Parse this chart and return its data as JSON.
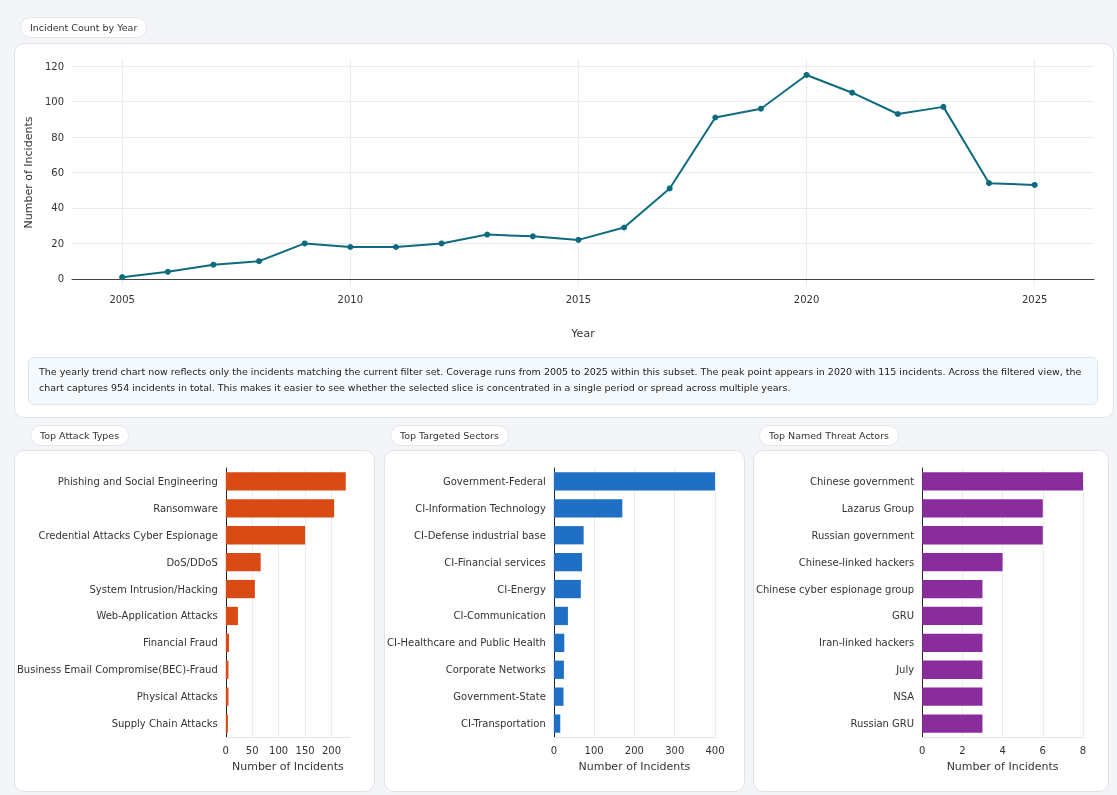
{
  "chart_data": [
    {
      "type": "line",
      "title": "Incident Count by Year",
      "xlabel": "Year",
      "ylabel": "Number of Incidents",
      "x": [
        2005,
        2006,
        2007,
        2008,
        2009,
        2010,
        2011,
        2012,
        2013,
        2014,
        2015,
        2016,
        2017,
        2018,
        2019,
        2020,
        2021,
        2022,
        2023,
        2024,
        2025
      ],
      "series": [
        {
          "color": "#0e6b7f",
          "values": [
            1,
            4,
            8,
            10,
            20,
            18,
            18,
            20,
            25,
            24,
            22,
            29,
            51,
            91,
            96,
            115,
            105,
            93,
            97,
            54,
            53
          ]
        }
      ],
      "xlim": [
        2003.9,
        2026.3
      ],
      "xticks": [
        2005,
        2010,
        2015,
        2020,
        2025
      ],
      "ylim": [
        -4,
        124
      ],
      "yticks": [
        0,
        20,
        40,
        60,
        80,
        100,
        120
      ],
      "grid": true,
      "marker": "circle",
      "line_style": "solid",
      "annotations": [
        "The yearly trend chart now reflects only the incidents matching the current filter set. Coverage runs from 2005 to 2025 within this subset. The peak point appears in 2020 with 115 incidents. Across the filtered view, the chart captures 954 incidents in total. This makes it easier to see whether the selected slice is concentrated in a single period or spread across multiple years."
      ]
    },
    {
      "type": "bar",
      "orientation": "horizontal",
      "title": "Top Attack Types",
      "xlabel": "Number of Incidents",
      "categories": [
        "Phishing and Social Engineering",
        "Ransomware",
        "Credential Attacks Cyber Espionage",
        "DoS/DDoS",
        "System Intrusion/Hacking",
        "Web-Application Attacks",
        "Financial Fraud",
        "Business Email Compromise(BEC)-Fraud",
        "Physical Attacks",
        "Supply Chain Attacks"
      ],
      "series": [
        {
          "color": "#d94a14",
          "values": [
            227,
            205,
            150,
            66,
            55,
            23,
            6,
            5,
            5,
            4
          ]
        }
      ],
      "xlim": [
        0,
        235
      ],
      "xticks": [
        0,
        50,
        100,
        150,
        200
      ],
      "grid": "x"
    },
    {
      "type": "bar",
      "orientation": "horizontal",
      "title": "Top Targeted Sectors",
      "xlabel": "Number of Incidents",
      "categories": [
        "Government-Federal",
        "CI-Information Technology",
        "CI-Defense industrial base",
        "CI-Financial services",
        "CI-Energy",
        "CI-Communication",
        "CI-Healthcare and Public Health",
        "Corporate Networks",
        "Government-State",
        "CI-Transportation"
      ],
      "series": [
        {
          "color": "#1f6fc4",
          "values": [
            400,
            170,
            74,
            70,
            67,
            35,
            26,
            25,
            24,
            16
          ]
        }
      ],
      "xlim": [
        0,
        400
      ],
      "xticks": [
        0,
        100,
        200,
        300,
        400
      ],
      "grid": "x"
    },
    {
      "type": "bar",
      "orientation": "horizontal",
      "title": "Top Named Threat Actors",
      "xlabel": "Number of Incidents",
      "categories": [
        "Chinese government",
        "Lazarus Group",
        "Russian government",
        "Chinese-linked hackers",
        "Chinese cyber espionage group",
        "GRU",
        "Iran-linked hackers",
        "July",
        "NSA",
        "Russian GRU"
      ],
      "series": [
        {
          "color": "#8a2d9c",
          "values": [
            8,
            6,
            6,
            4,
            3,
            3,
            3,
            3,
            3,
            3
          ]
        }
      ],
      "xlim": [
        0,
        8
      ],
      "xticks": [
        0,
        2,
        4,
        6,
        8
      ],
      "grid": "x"
    }
  ]
}
